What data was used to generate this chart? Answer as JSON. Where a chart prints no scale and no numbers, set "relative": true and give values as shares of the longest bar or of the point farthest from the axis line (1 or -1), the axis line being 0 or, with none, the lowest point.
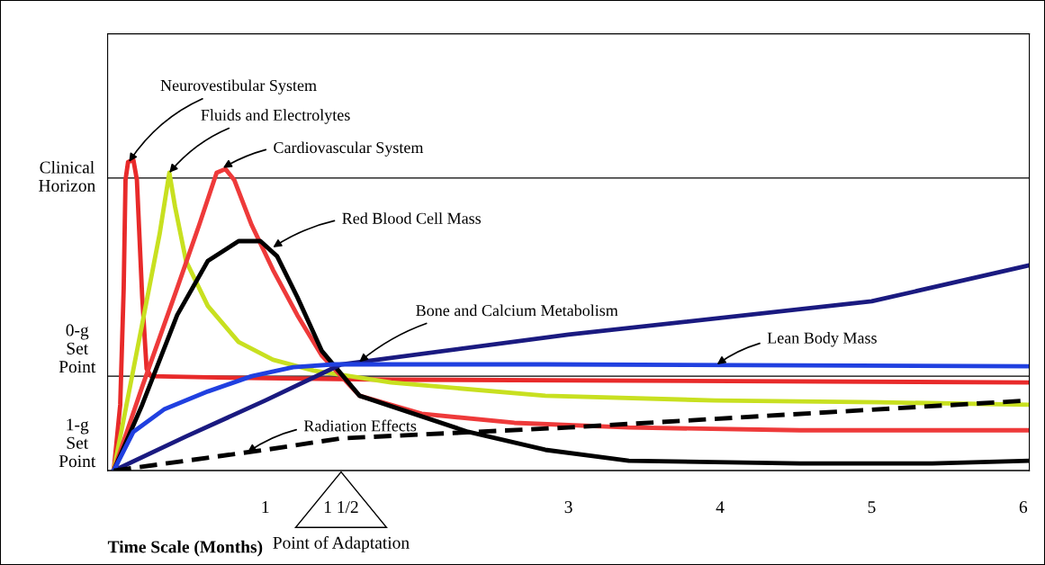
{
  "chart_data": {
    "type": "line",
    "relative": true,
    "xlabel": "Time Scale (Months)",
    "xlim": [
      -0.04,
      6.04
    ],
    "xticks": [
      1,
      {
        "value": 1.5,
        "label": "1 1/2"
      },
      3,
      4,
      5,
      6
    ],
    "tick_labels": "x",
    "grid": false,
    "legend": false,
    "marker": "none",
    "line_style": "solid",
    "series": [
      {
        "color": "#e82a2a",
        "x": [
          0,
          0.043,
          0.066,
          0.078,
          0.095,
          0.13,
          0.153,
          0.188,
          0.217,
          0.246,
          0.766,
          1.83,
          6.04
        ],
        "values": [
          0,
          0.212,
          0.588,
          0.936,
          0.994,
          1,
          0.936,
          0.559,
          0.328,
          0.304,
          0.299,
          0.293,
          0.284
        ]
      },
      {
        "color": "#c8e020",
        "x": [
          0,
          0.188,
          0.303,
          0.367,
          0.405,
          0.477,
          0.621,
          0.824,
          1.051,
          1.318,
          1.83,
          2.847,
          3.966,
          5.055,
          6.04
        ],
        "values": [
          0,
          0.472,
          0.762,
          0.959,
          0.849,
          0.675,
          0.53,
          0.414,
          0.357,
          0.322,
          0.284,
          0.241,
          0.226,
          0.22,
          0.212
        ]
      },
      {
        "color": "#ee3a3a",
        "x": [
          0,
          0.188,
          0.419,
          0.564,
          0.679,
          0.737,
          0.795,
          0.91,
          1.051,
          1.211,
          1.372,
          1.622,
          2.031,
          2.643,
          3.398,
          4.528,
          6.04
        ],
        "values": [
          0,
          0.27,
          0.588,
          0.791,
          0.959,
          0.971,
          0.936,
          0.791,
          0.646,
          0.501,
          0.371,
          0.241,
          0.183,
          0.154,
          0.139,
          0.13,
          0.13
        ]
      },
      {
        "color": "#000000",
        "x": [
          0,
          0.188,
          0.419,
          0.621,
          0.824,
          0.968,
          1.078,
          1.211,
          1.372,
          1.622,
          2.337,
          2.847,
          3.398,
          4.528,
          5.4,
          6.04
        ],
        "values": [
          0,
          0.212,
          0.501,
          0.675,
          0.739,
          0.739,
          0.69,
          0.559,
          0.386,
          0.241,
          0.125,
          0.067,
          0.032,
          0.023,
          0.023,
          0.032
        ]
      },
      {
        "color": "#1a1a80",
        "x": [
          0,
          0.477,
          1,
          1.5,
          3,
          5,
          6.04
        ],
        "values": [
          0,
          0.11,
          0.226,
          0.342,
          0.438,
          0.545,
          0.661
        ]
      },
      {
        "color": "#2040e0",
        "x": [
          0,
          0.13,
          0.332,
          0.621,
          0.91,
          1.184,
          1.452,
          2.847,
          6.04
        ],
        "values": [
          0,
          0.125,
          0.197,
          0.255,
          0.304,
          0.333,
          0.342,
          0.342,
          0.336
        ]
      },
      {
        "color": "#000000",
        "line_style": "dashed",
        "x": [
          0,
          1,
          1.5,
          3,
          6.04
        ],
        "values": [
          0,
          0.067,
          0.104,
          0.139,
          0.226
        ]
      }
    ],
    "ref_lines": [
      {
        "axis": "y",
        "value": 0.942,
        "label": "Clinical\nHorizon"
      },
      {
        "axis": "y",
        "value": 0.304,
        "label": "0-g\nSet\nPoint"
      },
      {
        "axis": "y",
        "value": 0,
        "label": "1-g\nSet\nPoint"
      }
    ],
    "annotations": [
      {
        "text": "Neurovestibular System",
        "x": 0.101,
        "y": 0.994
      },
      {
        "text": "Fluids and Electrolytes",
        "x": 0.367,
        "y": 0.959
      },
      {
        "text": "Cardiovascular System",
        "x": 0.722,
        "y": 0.975
      },
      {
        "text": "Red Blood Cell Mass",
        "x": 1.051,
        "y": 0.719
      },
      {
        "text": "Bone and Calcium Metabolism",
        "x": 1.62,
        "y": 0.35
      },
      {
        "text": "Lean Body Mass",
        "x": 3.98,
        "y": 0.342
      },
      {
        "text": "Radiation Effects",
        "x": 0.882,
        "y": 0.059
      },
      "Point of Adaptation"
    ]
  }
}
